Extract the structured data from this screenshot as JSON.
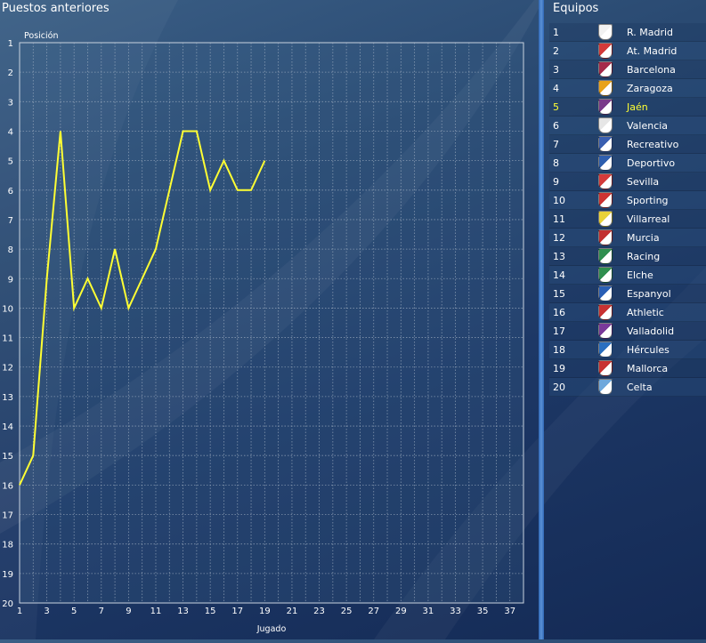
{
  "left_panel": {
    "title": "Puestos anteriores"
  },
  "right_panel": {
    "title": "Equipos"
  },
  "colors": {
    "line": "#ffff33",
    "grid": "#a9b7c8",
    "highlight": "#ffff33"
  },
  "chart_data": {
    "type": "line",
    "ylabel": "Posición",
    "xlabel": "Jugado",
    "xlim": [
      1,
      38
    ],
    "ylim": [
      1,
      20
    ],
    "y_inverted": true,
    "grid": true,
    "x_ticks": [
      1,
      3,
      5,
      7,
      9,
      11,
      13,
      15,
      17,
      19,
      21,
      23,
      25,
      27,
      29,
      31,
      33,
      35,
      37
    ],
    "y_ticks": [
      1,
      2,
      3,
      4,
      5,
      6,
      7,
      8,
      9,
      10,
      11,
      12,
      13,
      14,
      15,
      16,
      17,
      18,
      19,
      20
    ],
    "series": [
      {
        "x": [
          1,
          2,
          3,
          4,
          5,
          6,
          7,
          8,
          9,
          10,
          11,
          12,
          13,
          14,
          15,
          16,
          17,
          18,
          19
        ],
        "y": [
          16,
          15,
          9,
          4,
          10,
          9,
          10,
          8,
          10,
          9,
          8,
          6,
          4,
          4,
          6,
          5,
          6,
          6,
          5
        ]
      }
    ]
  },
  "teams": [
    {
      "pos": "1",
      "name": "R. Madrid",
      "crest": "#f2f2f2",
      "highlight": false
    },
    {
      "pos": "2",
      "name": "At. Madrid",
      "crest": "#d33a3a",
      "highlight": false
    },
    {
      "pos": "3",
      "name": "Barcelona",
      "crest": "#a52a4a",
      "highlight": false
    },
    {
      "pos": "4",
      "name": "Zaragoza",
      "crest": "#e8a21a",
      "highlight": false
    },
    {
      "pos": "5",
      "name": "Jaén",
      "crest": "#7a3a8a",
      "highlight": true
    },
    {
      "pos": "6",
      "name": "Valencia",
      "crest": "#e6e6e6",
      "highlight": false
    },
    {
      "pos": "7",
      "name": "Recreativo",
      "crest": "#3a5fb0",
      "highlight": false
    },
    {
      "pos": "8",
      "name": "Deportivo",
      "crest": "#2f5fae",
      "highlight": false
    },
    {
      "pos": "9",
      "name": "Sevilla",
      "crest": "#d43b3b",
      "highlight": false
    },
    {
      "pos": "10",
      "name": "Sporting",
      "crest": "#cc3333",
      "highlight": false
    },
    {
      "pos": "11",
      "name": "Villarreal",
      "crest": "#e8d23a",
      "highlight": false
    },
    {
      "pos": "12",
      "name": "Murcia",
      "crest": "#c23030",
      "highlight": false
    },
    {
      "pos": "13",
      "name": "Racing",
      "crest": "#2f8f4f",
      "highlight": false
    },
    {
      "pos": "14",
      "name": "Elche",
      "crest": "#2f8f4f",
      "highlight": false
    },
    {
      "pos": "15",
      "name": "Espanyol",
      "crest": "#2a5fb5",
      "highlight": false
    },
    {
      "pos": "16",
      "name": "Athletic",
      "crest": "#c83232",
      "highlight": false
    },
    {
      "pos": "17",
      "name": "Valladolid",
      "crest": "#7a3a9a",
      "highlight": false
    },
    {
      "pos": "18",
      "name": "Hércules",
      "crest": "#2a6fc0",
      "highlight": false
    },
    {
      "pos": "19",
      "name": "Mallorca",
      "crest": "#c83232",
      "highlight": false
    },
    {
      "pos": "20",
      "name": "Celta",
      "crest": "#6fa8dc",
      "highlight": false
    }
  ]
}
